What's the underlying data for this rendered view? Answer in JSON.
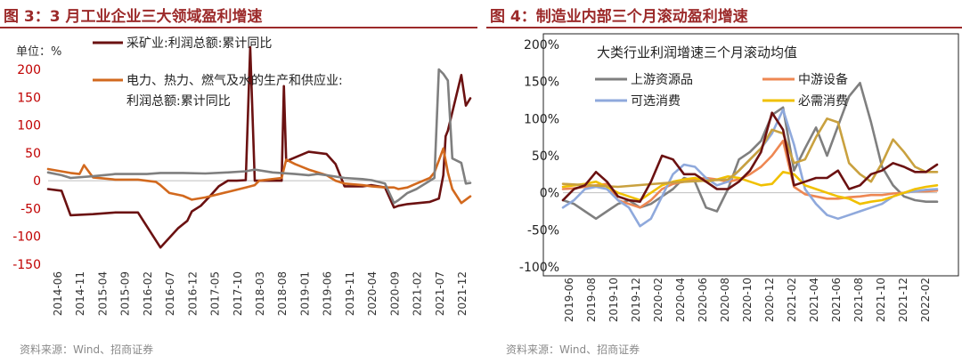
{
  "colors": {
    "title": "#9c2a2a",
    "mining": "#6b1111",
    "utility": "#d2691e",
    "upstream": "#7f7f7f",
    "midstream": "#ee8752",
    "optional": "#8fa9dc",
    "necessary": "#f0c000",
    "special": "#c9a13f"
  },
  "left": {
    "title": "图 3：3 月工业企业三大领域盈利增速",
    "source": "资料来源：Wind、招商证券"
  },
  "right": {
    "title": "图 4：制造业内部三个月滚动盈利增速",
    "source": "资料来源：Wind、招商证券"
  },
  "chart_data": [
    {
      "type": "line",
      "title": "",
      "unit_label": "单位：%",
      "y_ticks": [
        -150,
        -100,
        -50,
        0,
        50,
        100,
        150,
        200
      ],
      "ylim": [
        -150,
        200
      ],
      "x_ticks": [
        "2014-06",
        "2014-11",
        "2015-04",
        "2015-09",
        "2016-02",
        "2016-07",
        "2016-12",
        "2017-05",
        "2017-10",
        "2018-03",
        "2018-08",
        "2019-01",
        "2019-06",
        "2019-11",
        "2020-04",
        "2020-09",
        "2021-02",
        "2021-07",
        "2021-12"
      ],
      "x_range": [
        0,
        94
      ],
      "legend_lines": [
        [
          "采矿业:利润总额:累计同比"
        ],
        [
          "电力、热力、燃气及水的生产和供应业:",
          "利润总额:累计同比"
        ]
      ],
      "series": [
        {
          "name": "采矿业:利润总额:累计同比",
          "color_key": "mining",
          "x": [
            0,
            3,
            5,
            10,
            15,
            20,
            25,
            29,
            31,
            32,
            34,
            36,
            38,
            40,
            42,
            44,
            45,
            46,
            46.5,
            47,
            52,
            52.5,
            53,
            55,
            58,
            62,
            64,
            66,
            70,
            72,
            75,
            77,
            78,
            80,
            85,
            87,
            88,
            88.5,
            89,
            92,
            93,
            94
          ],
          "y": [
            -15,
            -18,
            -62,
            -60,
            -57,
            -57,
            -120,
            -85,
            -72,
            -55,
            -45,
            -28,
            -10,
            0,
            0,
            1,
            240,
            0,
            0,
            0,
            0,
            170,
            35,
            42,
            52,
            48,
            30,
            -10,
            -10,
            -8,
            -12,
            -48,
            -45,
            -42,
            -38,
            -32,
            10,
            80,
            90,
            190,
            135,
            148
          ]
        },
        {
          "name": "电力、热力、燃气及水的生产和供应业:利润总额:累计同比",
          "color_key": "utility",
          "x": [
            0,
            5,
            7,
            8,
            10,
            15,
            20,
            24,
            25,
            27,
            30,
            32,
            35,
            40,
            44,
            46,
            47,
            52,
            53,
            55,
            58,
            62,
            64,
            66,
            70,
            72,
            75,
            77,
            78,
            80,
            82,
            85,
            86,
            88,
            89,
            90,
            92,
            94
          ],
          "y": [
            21,
            14,
            12,
            28,
            6,
            2,
            2,
            -2,
            -8,
            -22,
            -27,
            -34,
            -30,
            -20,
            -12,
            -8,
            0,
            5,
            38,
            30,
            20,
            10,
            0,
            -5,
            -8,
            -10,
            -12,
            -12,
            -15,
            -12,
            -5,
            5,
            15,
            58,
            15,
            -15,
            -40,
            -28
          ]
        },
        {
          "name": "",
          "color_key": "upstream",
          "x": [
            0,
            3,
            5,
            10,
            15,
            20,
            22,
            25,
            30,
            35,
            40,
            44,
            46,
            50,
            55,
            58,
            60,
            62,
            66,
            70,
            72,
            75,
            77,
            78,
            80,
            82,
            85,
            86,
            87,
            88,
            89,
            90,
            92,
            93,
            94
          ],
          "y": [
            15,
            10,
            5,
            8,
            12,
            12,
            12,
            14,
            14,
            13,
            15,
            17,
            20,
            15,
            12,
            10,
            12,
            10,
            5,
            3,
            1,
            -5,
            -40,
            -35,
            -22,
            -15,
            0,
            5,
            200,
            192,
            180,
            40,
            32,
            -5,
            -4
          ]
        }
      ]
    },
    {
      "type": "line",
      "title": "",
      "subtitle": "大类行业利润增速三个月滚动均值",
      "y_ticks": [
        "-100%",
        "-50%",
        "0%",
        "50%",
        "100%",
        "150%",
        "200%"
      ],
      "y_values": [
        -100,
        -50,
        0,
        50,
        100,
        150,
        200
      ],
      "ylim": [
        -100,
        200
      ],
      "x_ticks": [
        "2019-06",
        "2019-08",
        "2019-10",
        "2019-12",
        "2020-02",
        "2020-04",
        "2020-06",
        "2020-08",
        "2020-10",
        "2020-12",
        "2021-02",
        "2021-04",
        "2021-06",
        "2021-08",
        "2021-10",
        "2021-12",
        "2022-02"
      ],
      "x_range": [
        0,
        34
      ],
      "series": [
        {
          "name": "上游资源品",
          "color_key": "upstream",
          "x": [
            0,
            1,
            2,
            3,
            4,
            5,
            6,
            7,
            8,
            9,
            10,
            11,
            12,
            13,
            14,
            15,
            16,
            17,
            18,
            19,
            20,
            21,
            22,
            23,
            24,
            25,
            26,
            27,
            28,
            29,
            30,
            31,
            32,
            33,
            34
          ],
          "y": [
            -10,
            -15,
            -25,
            -35,
            -25,
            -15,
            -10,
            -20,
            -15,
            -5,
            5,
            20,
            15,
            -20,
            -25,
            5,
            45,
            55,
            70,
            105,
            115,
            30,
            60,
            88,
            50,
            90,
            130,
            148,
            95,
            35,
            10,
            -5,
            -10,
            -12,
            -12
          ]
        },
        {
          "name": "中游设备",
          "color_key": "midstream",
          "x": [
            0,
            1,
            2,
            3,
            4,
            5,
            6,
            7,
            8,
            9,
            10,
            11,
            12,
            13,
            14,
            15,
            16,
            17,
            18,
            19,
            20,
            21,
            22,
            23,
            24,
            25,
            26,
            27,
            28,
            29,
            30,
            31,
            32,
            33,
            34
          ],
          "y": [
            5,
            6,
            8,
            10,
            12,
            -10,
            -15,
            -20,
            -10,
            5,
            12,
            15,
            18,
            20,
            18,
            15,
            18,
            25,
            35,
            50,
            70,
            8,
            -2,
            -5,
            -8,
            -8,
            -6,
            -5,
            -3,
            -3,
            -1,
            0,
            2,
            2,
            3
          ]
        },
        {
          "name": "可选消费",
          "color_key": "optional",
          "x": [
            0,
            1,
            2,
            3,
            4,
            5,
            6,
            7,
            8,
            9,
            10,
            11,
            12,
            13,
            14,
            15,
            16,
            17,
            18,
            19,
            20,
            21,
            22,
            23,
            24,
            25,
            26,
            27,
            28,
            29,
            30,
            31,
            32,
            33,
            34
          ],
          "y": [
            -20,
            -10,
            5,
            8,
            5,
            -10,
            -20,
            -45,
            -35,
            -5,
            25,
            38,
            35,
            20,
            10,
            15,
            30,
            45,
            60,
            80,
            112,
            65,
            5,
            -15,
            -30,
            -35,
            -30,
            -25,
            -20,
            -15,
            -5,
            0,
            2,
            4,
            5
          ]
        },
        {
          "name": "必需消费",
          "color_key": "necessary",
          "x": [
            0,
            1,
            2,
            3,
            4,
            5,
            6,
            7,
            8,
            9,
            10,
            11,
            12,
            13,
            14,
            15,
            16,
            17,
            18,
            19,
            20,
            21,
            22,
            23,
            24,
            25,
            26,
            27,
            28,
            29,
            30,
            31,
            32,
            33,
            34
          ],
          "y": [
            8,
            10,
            12,
            15,
            8,
            0,
            -5,
            -10,
            0,
            10,
            15,
            18,
            20,
            15,
            18,
            22,
            20,
            15,
            10,
            12,
            28,
            25,
            10,
            5,
            0,
            -5,
            -8,
            -15,
            -12,
            -10,
            -5,
            0,
            5,
            8,
            10
          ]
        },
        {
          "name": "",
          "color_key": "special",
          "x": [
            0,
            5,
            10,
            15,
            16,
            17,
            18,
            19,
            20,
            21,
            22,
            23,
            24,
            25,
            26,
            27,
            28,
            29,
            30,
            31,
            32,
            33,
            34
          ],
          "y": [
            12,
            8,
            14,
            18,
            30,
            45,
            60,
            85,
            80,
            40,
            45,
            75,
            100,
            95,
            40,
            25,
            15,
            40,
            72,
            55,
            35,
            28,
            28
          ]
        },
        {
          "name": "",
          "color_key": "mining",
          "x": [
            0,
            1,
            2,
            3,
            4,
            5,
            6,
            7,
            8,
            9,
            10,
            11,
            12,
            13,
            14,
            15,
            16,
            17,
            18,
            19,
            20,
            21,
            22,
            23,
            24,
            25,
            26,
            27,
            28,
            29,
            30,
            31,
            32,
            33,
            34
          ],
          "y": [
            -10,
            5,
            10,
            28,
            15,
            -5,
            -10,
            -12,
            15,
            50,
            45,
            25,
            25,
            15,
            5,
            5,
            15,
            30,
            55,
            108,
            85,
            10,
            15,
            20,
            20,
            30,
            5,
            10,
            25,
            30,
            40,
            35,
            28,
            28,
            38
          ]
        }
      ],
      "legend": [
        {
          "name": "上游资源品",
          "color_key": "upstream"
        },
        {
          "name": "中游设备",
          "color_key": "midstream"
        },
        {
          "name": "可选消费",
          "color_key": "optional"
        },
        {
          "name": "必需消费",
          "color_key": "necessary"
        }
      ],
      "legend_placement": "top"
    }
  ]
}
